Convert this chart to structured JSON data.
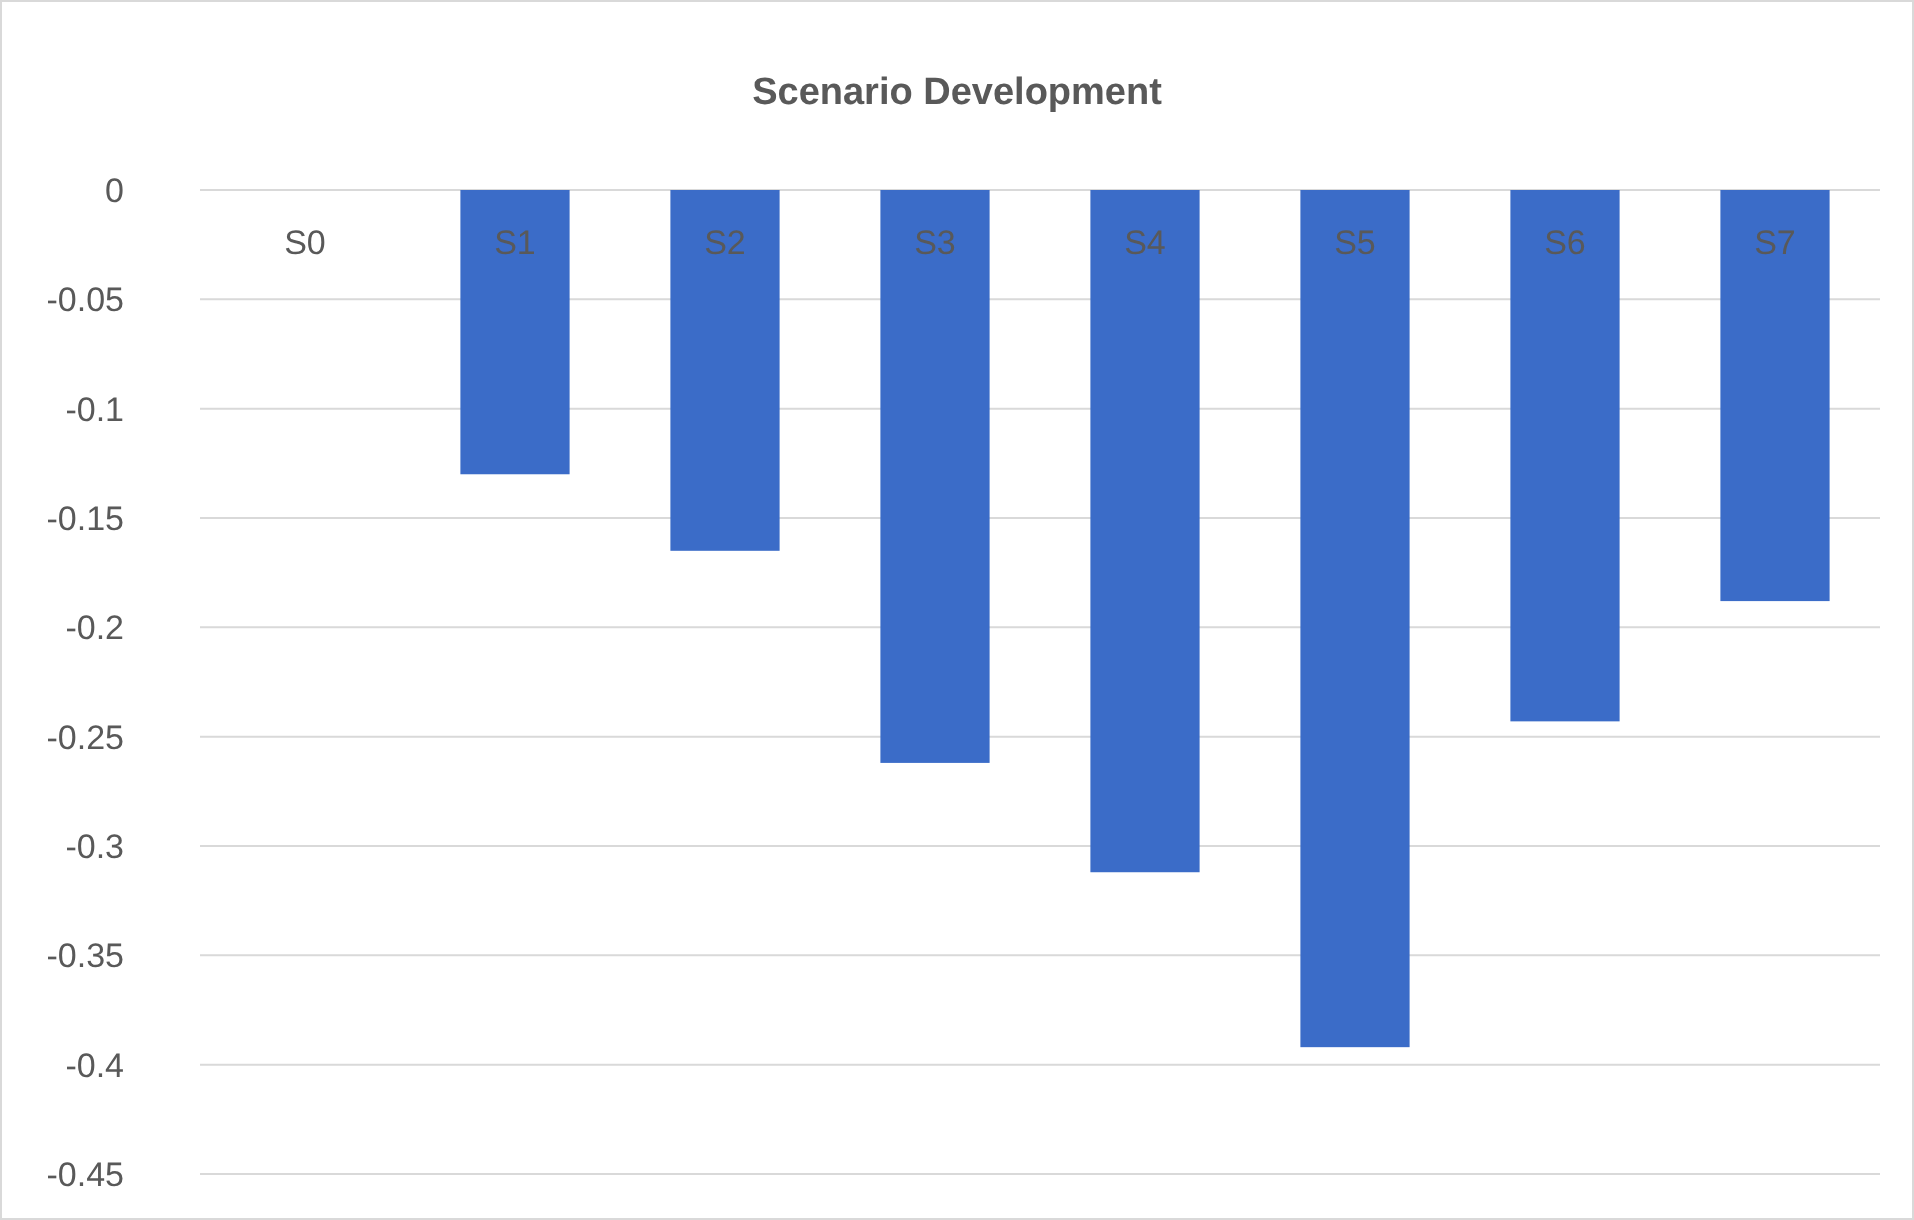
{
  "chart_data": {
    "type": "bar",
    "title": "Scenario Development",
    "categories": [
      "S0",
      "S1",
      "S2",
      "S3",
      "S4",
      "S5",
      "S6",
      "S7"
    ],
    "values": [
      0,
      -0.13,
      -0.165,
      -0.262,
      -0.312,
      -0.392,
      -0.243,
      -0.188
    ],
    "color": "#3b6cc8",
    "ylim": [
      -0.45,
      0
    ],
    "yticks": [
      0,
      -0.05,
      -0.1,
      -0.15,
      -0.2,
      -0.25,
      -0.3,
      -0.35,
      -0.4,
      -0.45
    ],
    "grid": "y"
  }
}
